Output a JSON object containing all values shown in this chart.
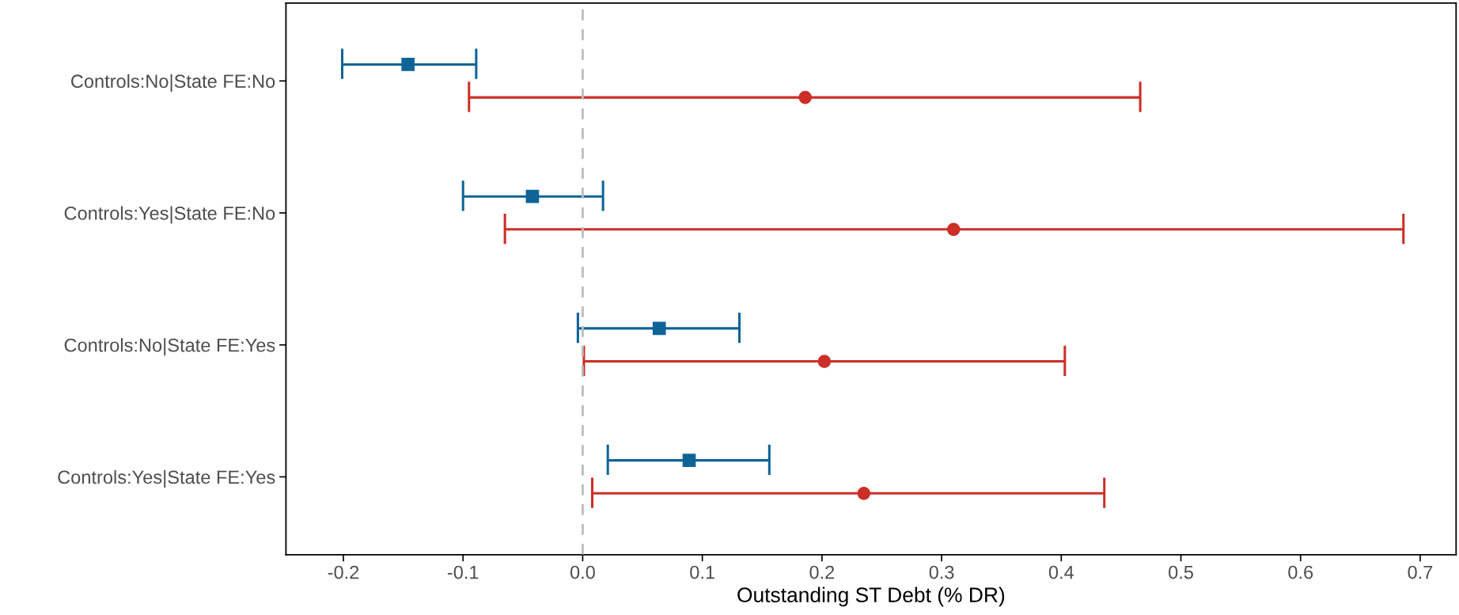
{
  "chart_data": {
    "type": "scatter",
    "orientation": "horizontal",
    "xlabel": "Outstanding ST Debt (% DR)",
    "categories": [
      "Controls:No|State FE:No",
      "Controls:Yes|State FE:No",
      "Controls:No|State FE:Yes",
      "Controls:Yes|State FE:Yes"
    ],
    "series": [
      {
        "color": "#0f6497",
        "marker": "square",
        "values": [
          -0.146,
          -0.042,
          0.064,
          0.089
        ],
        "errors": [
          [
            -0.201,
            -0.089
          ],
          [
            -0.1,
            0.017
          ],
          [
            -0.004,
            0.131
          ],
          [
            0.021,
            0.156
          ]
        ]
      },
      {
        "color": "#cc2f27",
        "marker": "circle",
        "values": [
          0.186,
          0.31,
          0.202,
          0.235
        ],
        "errors": [
          [
            -0.095,
            0.466
          ],
          [
            -0.065,
            0.686
          ],
          [
            0.001,
            0.403
          ],
          [
            0.008,
            0.436
          ]
        ]
      }
    ],
    "xlim": [
      -0.248,
      0.73
    ],
    "xticks": [
      -0.2,
      -0.1,
      {
        "value": 0,
        "label": "0.0"
      },
      0.1,
      0.2,
      0.3,
      0.4,
      0.5,
      0.6,
      0.7
    ],
    "ref_lines": [
      {
        "axis": "x",
        "value": 0,
        "color": "#bdbdbd",
        "line_style": "dashed"
      }
    ],
    "grid": false,
    "legend": false
  }
}
